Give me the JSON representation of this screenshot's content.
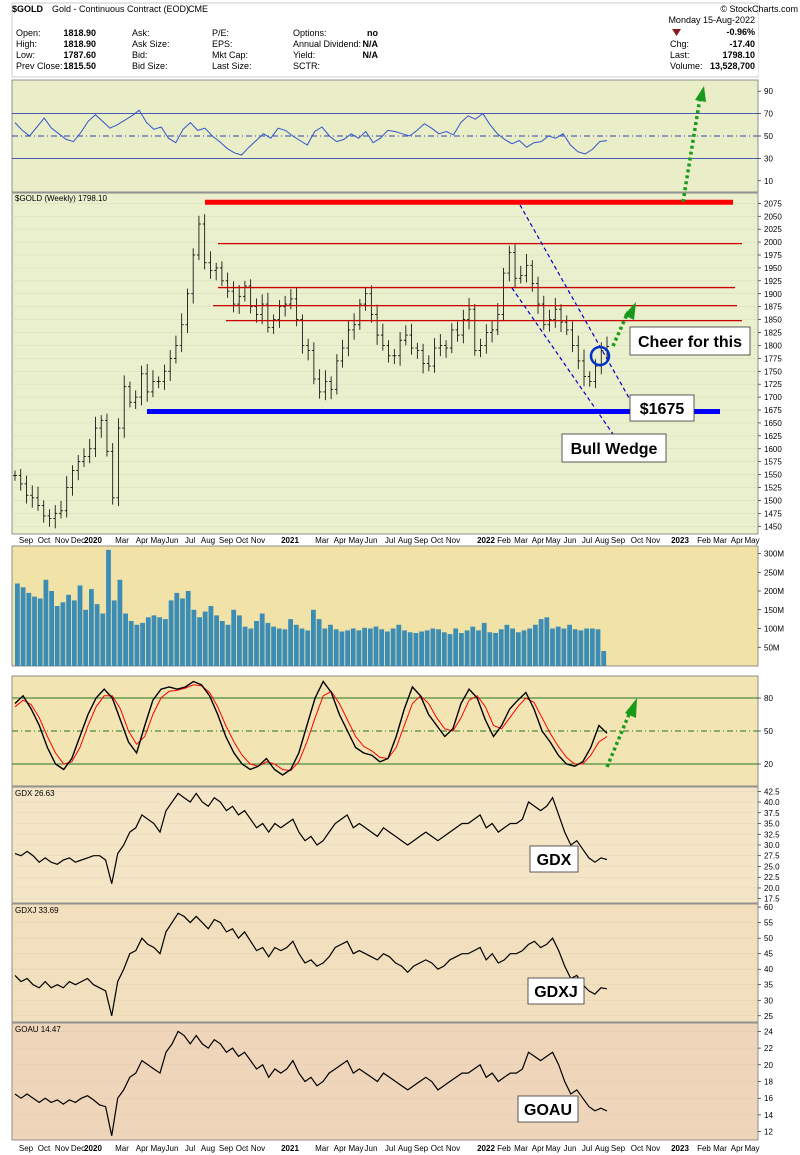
{
  "header": {
    "symbol": "$GOLD",
    "description": "Gold - Continuous Contract (EOD)",
    "exchange": "CME",
    "watermark": "© StockCharts.com",
    "date": "Monday 15-Aug-2022",
    "fields_left": [
      {
        "label": "Open:",
        "value": "1818.90"
      },
      {
        "label": "High:",
        "value": "1818.90"
      },
      {
        "label": "Low:",
        "value": "1787.60"
      },
      {
        "label": "Prev Close:",
        "value": "1815.50"
      }
    ],
    "fields_mid": [
      {
        "label": "Ask:",
        "value": ""
      },
      {
        "label": "Ask Size:",
        "value": ""
      },
      {
        "label": "Bid:",
        "value": ""
      },
      {
        "label": "Bid Size:",
        "value": ""
      }
    ],
    "fields_mid2": [
      {
        "label": "P/E:",
        "value": ""
      },
      {
        "label": "EPS:",
        "value": ""
      },
      {
        "label": "Mkt Cap:",
        "value": ""
      },
      {
        "label": "Last Size:",
        "value": ""
      }
    ],
    "fields_right": [
      {
        "label": "Options:",
        "value": "no"
      },
      {
        "label": "Annual Dividend:",
        "value": "N/A"
      },
      {
        "label": "Yield:",
        "value": "N/A"
      },
      {
        "label": "SCTR:",
        "value": ""
      }
    ],
    "pct_change": "-0.96%",
    "fields_quote": [
      {
        "label": "Chg:",
        "value": "-17.40"
      },
      {
        "label": "Last:",
        "value": "1798.10"
      },
      {
        "label": "Volume:",
        "value": "13,528,700"
      }
    ],
    "down_color": "#8b0000"
  },
  "x_axis": {
    "labels": [
      "Sep",
      "Oct",
      "Nov",
      "Dec",
      "2020",
      "Mar",
      "Apr",
      "May",
      "Jun",
      "Jul",
      "Aug",
      "Sep",
      "Oct",
      "Nov",
      "2021",
      "Mar",
      "Apr",
      "May",
      "Jun",
      "Jul",
      "Aug",
      "Sep",
      "Oct",
      "Nov",
      "2022",
      "Feb",
      "Mar",
      "Apr",
      "May",
      "Jun",
      "Jul",
      "Aug",
      "Sep",
      "Oct",
      "Nov",
      "2023",
      "Feb",
      "Mar",
      "Apr",
      "May"
    ]
  },
  "chart_data": [
    {
      "type": "line",
      "panel": "rsi",
      "y_ticks": [
        90,
        70,
        50,
        30,
        10
      ],
      "ylim": [
        0,
        100
      ],
      "reference_lines": [
        70,
        50,
        30
      ],
      "values": [
        62,
        55,
        50,
        58,
        66,
        57,
        52,
        47,
        45,
        53,
        63,
        69,
        63,
        57,
        60,
        64,
        68,
        73,
        62,
        56,
        58,
        48,
        44,
        56,
        62,
        55,
        57,
        50,
        45,
        39,
        35,
        33,
        40,
        46,
        52,
        48,
        57,
        55,
        50,
        46,
        42,
        54,
        58,
        50,
        45,
        47,
        52,
        48,
        54,
        44,
        48,
        55,
        54,
        52,
        50,
        55,
        61,
        57,
        52,
        54,
        51,
        62,
        68,
        65,
        70,
        60,
        52,
        47,
        43,
        46,
        40,
        44,
        45,
        50,
        48,
        52,
        42,
        36,
        34,
        38,
        45,
        46
      ]
    },
    {
      "type": "candlestick",
      "panel": "price",
      "title": "$GOLD (Weekly) 1798.10",
      "y_ticks": [
        2075,
        2050,
        2025,
        2000,
        1975,
        1950,
        1925,
        1900,
        1875,
        1850,
        1825,
        1800,
        1775,
        1750,
        1725,
        1700,
        1675,
        1650,
        1625,
        1600,
        1575,
        1550,
        1525,
        1500,
        1475,
        1450
      ],
      "ylim": [
        1435,
        2095
      ],
      "close": [
        1548,
        1532,
        1510,
        1505,
        1490,
        1470,
        1465,
        1475,
        1480,
        1525,
        1558,
        1575,
        1585,
        1600,
        1640,
        1655,
        1595,
        1505,
        1640,
        1720,
        1690,
        1700,
        1745,
        1710,
        1730,
        1730,
        1750,
        1775,
        1800,
        1840,
        1900,
        1975,
        2035,
        1960,
        1945,
        1950,
        1925,
        1905,
        1880,
        1895,
        1915,
        1875,
        1860,
        1880,
        1835,
        1850,
        1875,
        1880,
        1890,
        1850,
        1800,
        1790,
        1735,
        1710,
        1730,
        1715,
        1770,
        1795,
        1830,
        1840,
        1880,
        1900,
        1860,
        1820,
        1800,
        1780,
        1780,
        1810,
        1820,
        1795,
        1790,
        1765,
        1760,
        1795,
        1800,
        1795,
        1830,
        1820,
        1850,
        1870,
        1790,
        1800,
        1825,
        1830,
        1860,
        1940,
        1980,
        1930,
        1935,
        1955,
        1920,
        1880,
        1840,
        1850,
        1870,
        1845,
        1830,
        1800,
        1770,
        1740,
        1730,
        1760,
        1790,
        1798
      ]
    },
    {
      "type": "bar",
      "panel": "volume",
      "y_ticks_labels": [
        "300M",
        "250M",
        "200M",
        "150M",
        "100M",
        "50M"
      ],
      "y_ticks": [
        300,
        250,
        200,
        150,
        100,
        50
      ],
      "ylim": [
        0,
        320
      ],
      "values": [
        220,
        210,
        195,
        185,
        180,
        230,
        200,
        160,
        170,
        190,
        175,
        215,
        150,
        205,
        165,
        140,
        310,
        175,
        230,
        140,
        120,
        110,
        115,
        130,
        135,
        130,
        125,
        175,
        195,
        180,
        200,
        150,
        130,
        145,
        160,
        135,
        120,
        110,
        150,
        135,
        105,
        100,
        120,
        140,
        115,
        105,
        100,
        98,
        125,
        110,
        100,
        95,
        150,
        125,
        100,
        110,
        98,
        92,
        95,
        100,
        95,
        102,
        100,
        105,
        98,
        92,
        100,
        110,
        95,
        90,
        88,
        92,
        95,
        100,
        98,
        90,
        85,
        100,
        88,
        95,
        105,
        95,
        115,
        90,
        88,
        98,
        110,
        100,
        90,
        95,
        100,
        110,
        125,
        130,
        100,
        105,
        100,
        110,
        98,
        95,
        100,
        100,
        98,
        40
      ]
    },
    {
      "type": "line",
      "panel": "stochastic",
      "y_ticks": [
        80,
        50,
        20
      ],
      "ylim": [
        0,
        100
      ],
      "reference_lines": [
        80,
        50,
        20
      ],
      "series": [
        {
          "color": "#000000",
          "values": [
            75,
            82,
            70,
            55,
            35,
            20,
            15,
            25,
            45,
            65,
            80,
            88,
            80,
            60,
            40,
            30,
            55,
            78,
            88,
            90,
            88,
            90,
            95,
            92,
            82,
            65,
            45,
            30,
            20,
            15,
            18,
            25,
            15,
            10,
            15,
            30,
            55,
            80,
            95,
            85,
            65,
            50,
            35,
            30,
            28,
            22,
            25,
            45,
            70,
            90,
            82,
            65,
            55,
            45,
            52,
            75,
            88,
            80,
            60,
            45,
            55,
            70,
            78,
            85,
            70,
            50,
            40,
            28,
            20,
            18,
            22,
            35,
            55,
            48
          ]
        },
        {
          "color": "#ff0000",
          "values": [
            72,
            78,
            74,
            62,
            45,
            30,
            20,
            22,
            35,
            55,
            72,
            82,
            82,
            70,
            50,
            38,
            45,
            65,
            80,
            86,
            87,
            89,
            92,
            91,
            85,
            72,
            55,
            40,
            28,
            20,
            18,
            22,
            20,
            15,
            14,
            22,
            40,
            62,
            82,
            86,
            75,
            60,
            45,
            36,
            32,
            26,
            25,
            35,
            55,
            75,
            82,
            75,
            62,
            52,
            50,
            62,
            78,
            82,
            72,
            55,
            52,
            62,
            72,
            80,
            76,
            62,
            48,
            36,
            26,
            20,
            20,
            28,
            40,
            45
          ]
        }
      ]
    },
    {
      "type": "line",
      "panel": "gdx",
      "title": "GDX 26.63",
      "annotation": "GDX",
      "y_ticks": [
        42.5,
        40.0,
        37.5,
        35.0,
        32.5,
        30.0,
        27.5,
        25.0,
        22.5,
        20.0,
        17.5
      ],
      "ylim": [
        16.5,
        43.5
      ],
      "values": [
        28,
        27.5,
        28.5,
        27.5,
        26,
        27,
        26,
        25.5,
        26.5,
        27,
        26,
        26.5,
        27,
        27.5,
        27.5,
        26.5,
        21,
        28,
        30,
        33,
        34,
        37,
        36,
        35,
        33,
        38,
        40,
        42,
        41,
        40,
        42,
        40,
        39,
        41,
        40,
        38,
        39,
        37,
        38,
        36,
        34,
        35,
        33,
        35,
        34,
        35,
        36,
        33,
        31,
        32,
        30,
        31,
        33,
        35,
        36,
        37,
        34,
        35,
        34,
        33,
        32,
        34,
        33,
        32,
        31,
        30,
        31,
        32,
        33,
        32,
        31,
        32,
        33,
        34,
        35,
        35,
        36,
        37,
        34,
        35,
        33,
        34,
        35,
        35,
        36,
        40,
        39,
        38,
        39,
        41,
        37,
        33,
        30,
        31,
        29,
        27,
        26,
        27,
        26.6
      ]
    },
    {
      "type": "line",
      "panel": "gdxj",
      "title": "GDXJ 33.69",
      "annotation": "GDXJ",
      "y_ticks": [
        60,
        55,
        50,
        45,
        40,
        35,
        30,
        25
      ],
      "ylim": [
        23,
        61
      ],
      "values": [
        38,
        36,
        37,
        35,
        34,
        36,
        34,
        35,
        34,
        36,
        35,
        36,
        37,
        35,
        34,
        33,
        25,
        36,
        40,
        45,
        46,
        50,
        48,
        47,
        45,
        52,
        55,
        58,
        57,
        55,
        57,
        55,
        53,
        56,
        55,
        52,
        53,
        50,
        52,
        49,
        46,
        47,
        44,
        47,
        46,
        47,
        49,
        45,
        42,
        43,
        41,
        42,
        44,
        47,
        48,
        49,
        45,
        46,
        45,
        44,
        43,
        45,
        44,
        42,
        41,
        39,
        41,
        42,
        43,
        42,
        40,
        41,
        43,
        44,
        45,
        45,
        46,
        47,
        43,
        45,
        42,
        43,
        45,
        45,
        46,
        48,
        49,
        47,
        48,
        50,
        46,
        41,
        37,
        38,
        35,
        33,
        32,
        34,
        33.7
      ]
    },
    {
      "type": "line",
      "panel": "goau",
      "title": "GOAU 14.47",
      "annotation": "GOAU",
      "y_ticks": [
        24,
        22,
        20,
        18,
        16,
        14,
        12
      ],
      "ylim": [
        11,
        25
      ],
      "values": [
        16.5,
        16,
        16.5,
        16,
        15.5,
        16,
        15.5,
        15.8,
        15.3,
        15.8,
        15.5,
        16,
        16.3,
        15.8,
        15.2,
        15,
        11.5,
        16,
        17,
        18.5,
        19,
        20.5,
        20,
        19.5,
        19,
        21.5,
        22.5,
        24,
        23.5,
        22.5,
        23.5,
        22.5,
        22,
        23,
        22.5,
        21.5,
        22,
        21,
        21.5,
        20.5,
        19.5,
        20,
        18.5,
        19.5,
        19,
        19.5,
        20.5,
        19,
        18,
        18.5,
        17.5,
        18,
        19,
        19.5,
        20,
        20.5,
        19,
        19.5,
        19,
        18.5,
        18,
        19,
        18.5,
        18,
        17.5,
        17,
        17.5,
        18,
        18.5,
        18,
        17,
        17.5,
        18,
        18.5,
        19,
        19,
        19.5,
        20,
        18.5,
        19,
        18,
        18.5,
        19,
        19,
        19.5,
        21.5,
        21,
        20.5,
        21,
        21.5,
        20,
        18,
        16.5,
        17,
        16,
        15,
        14.5,
        14.8,
        14.47
      ]
    }
  ],
  "price_annotations": {
    "horizontal_lines": [
      {
        "level": 2077,
        "color": "#ff0000",
        "weight": "thick"
      },
      {
        "level": 1997,
        "color": "#cc0000",
        "weight": "thin"
      },
      {
        "level": 1912,
        "color": "#cc0000",
        "weight": "thin"
      },
      {
        "level": 1877,
        "color": "#cc0000",
        "weight": "thin"
      },
      {
        "level": 1848,
        "color": "#cc0000",
        "weight": "thin"
      },
      {
        "level": 1672,
        "color": "#0000ff",
        "weight": "thick"
      }
    ],
    "callouts": [
      {
        "name": "cheer-callout",
        "text": "Cheer for this"
      },
      {
        "name": "support-callout",
        "text": "$1675"
      },
      {
        "name": "wedge-callout",
        "text": "Bull Wedge"
      }
    ]
  },
  "colors": {
    "rsi_bg": "#e9eec8",
    "price_bg": "#eaefcd",
    "volume_bg": "#f1e2a8",
    "stoch_bg": "#f2e4b3",
    "gdx_bg": "#f3e5c6",
    "gdxj_bg": "#f1dfbe",
    "goau_bg": "#efd6bb",
    "volume_bar": "#3b8db5",
    "arrow_green": "#1a9a1a"
  }
}
